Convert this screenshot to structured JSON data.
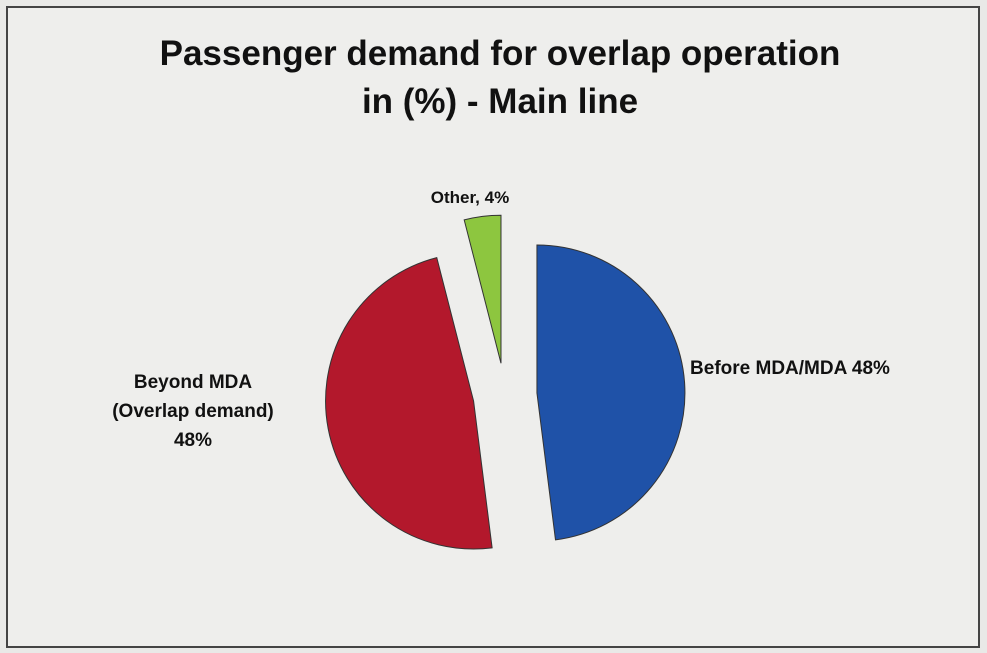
{
  "chart_data": {
    "type": "pie",
    "title": "Passenger demand for overlap operation in (%) - Main line",
    "values": [
      48,
      48,
      4
    ],
    "value_labels": [
      "Before MDA/MDA 48%",
      "Beyond MDA (Overlap demand) 48%",
      "Other, 4%"
    ],
    "colors": [
      "#1f52a8",
      "#b3182c",
      "#8dc63f"
    ],
    "exploded": true
  }
}
